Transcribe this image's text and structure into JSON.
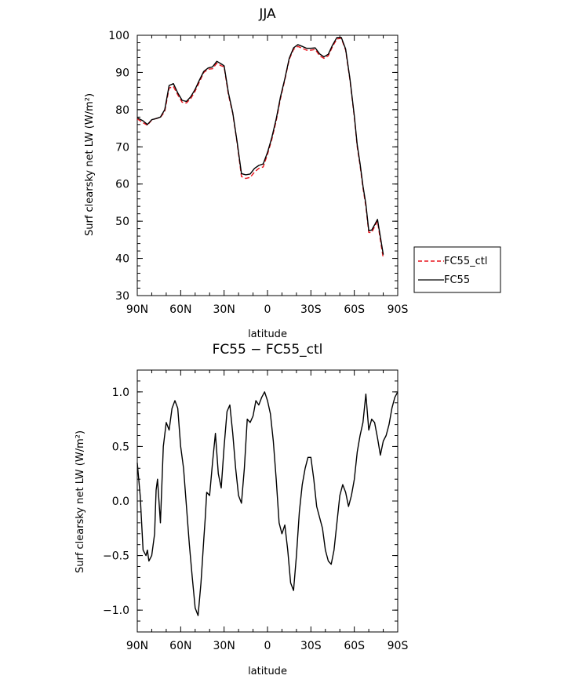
{
  "chart_data": [
    {
      "type": "line",
      "title": "JJA",
      "xlabel": "latitude",
      "ylabel": "Surf clearsky net LW (W/m²)",
      "xlim": [
        90,
        -90
      ],
      "ylim": [
        30,
        100
      ],
      "xticks": [
        90,
        60,
        30,
        0,
        -30,
        -60,
        -90
      ],
      "xtick_labels": [
        "90N",
        "60N",
        "30N",
        "0",
        "30S",
        "60S",
        "90S"
      ],
      "yticks": [
        30,
        40,
        50,
        60,
        70,
        80,
        90,
        100
      ],
      "ytick_labels": [
        "30",
        "40",
        "50",
        "60",
        "70",
        "80",
        "90",
        "100"
      ],
      "legend": {
        "placement": "outside-right"
      },
      "x": [
        90,
        86,
        83,
        80,
        77,
        74,
        71,
        68,
        65,
        62,
        59,
        56,
        53,
        50,
        47,
        44,
        41,
        38,
        35,
        32,
        30,
        27,
        24,
        21,
        18,
        15,
        12,
        9,
        6,
        3,
        0,
        -3,
        -6,
        -9,
        -12,
        -15,
        -18,
        -21,
        -24,
        -27,
        -30,
        -33,
        -36,
        -39,
        -42,
        -45,
        -48,
        -51,
        -54,
        -57,
        -60,
        -62,
        -64,
        -66,
        -68,
        -70,
        -72,
        -74,
        -76,
        -78,
        -80,
        -82,
        -84,
        -86,
        -88,
        -90
      ],
      "series": [
        {
          "name": "FC55_ctl",
          "color": "#e8141c",
          "dash": true,
          "values": [
            77.5,
            76.5,
            75.8,
            77.2,
            77.6,
            77.9,
            79.5,
            85.8,
            86.2,
            84.0,
            82.0,
            81.8,
            83.0,
            85.0,
            87.5,
            90.0,
            90.9,
            91.0,
            92.5,
            91.8,
            91.5,
            84.0,
            79.0,
            71.0,
            62.0,
            61.5,
            61.8,
            63.2,
            64.2,
            64.6,
            68.0,
            72.0,
            77.0,
            83.0,
            88.0,
            93.5,
            96.2,
            97.0,
            96.5,
            96.0,
            96.0,
            96.2,
            94.5,
            93.8,
            94.5,
            97.0,
            99.0,
            99.2,
            96.0,
            88.0,
            78.0,
            70.0,
            65.0,
            59.0,
            54.0,
            47.0,
            47.0,
            48.5,
            50.0,
            45.0,
            40.0,
            null,
            null,
            null,
            null,
            null
          ]
        },
        {
          "name": "FC55",
          "color": "#000000",
          "dash": false,
          "values": [
            77.8,
            77.0,
            76.0,
            77.3,
            77.6,
            78.0,
            80.0,
            86.5,
            87.0,
            84.5,
            82.5,
            82.2,
            83.5,
            85.5,
            88.0,
            90.3,
            91.2,
            91.5,
            93.0,
            92.3,
            91.8,
            84.5,
            79.2,
            71.3,
            62.8,
            62.5,
            62.7,
            64.2,
            65.0,
            65.4,
            68.5,
            72.5,
            77.5,
            83.5,
            88.3,
            93.8,
            96.6,
            97.5,
            97.0,
            96.5,
            96.5,
            96.6,
            95.0,
            94.2,
            94.9,
            97.4,
            99.4,
            99.4,
            96.3,
            88.3,
            78.3,
            70.5,
            65.5,
            59.5,
            54.6,
            47.5,
            47.6,
            49.0,
            50.5,
            45.8,
            41.0,
            null,
            null,
            null,
            null,
            null
          ]
        }
      ]
    },
    {
      "type": "line",
      "title": "FC55 − FC55_ctl",
      "xlabel": "latitude",
      "ylabel": "Surf clearsky net LW (W/m²)",
      "xlim": [
        90,
        -90
      ],
      "ylim": [
        -1.2,
        1.2
      ],
      "xticks": [
        90,
        60,
        30,
        0,
        -30,
        -60,
        -90
      ],
      "xtick_labels": [
        "90N",
        "60N",
        "30N",
        "0",
        "30S",
        "60S",
        "90S"
      ],
      "yticks": [
        -1.0,
        -0.5,
        0.0,
        0.5,
        1.0
      ],
      "ytick_labels": [
        "−1.0",
        "−0.5",
        "0.0",
        "0.5",
        "1.0"
      ],
      "x": [
        90,
        88,
        86,
        84,
        83,
        82,
        80,
        78,
        77,
        76,
        74,
        72,
        70,
        68,
        66,
        64,
        62,
        60,
        58,
        56,
        54,
        52,
        50,
        48,
        46,
        44,
        43,
        42,
        40,
        38,
        36,
        34,
        32,
        30,
        28,
        26,
        24,
        22,
        20,
        18,
        16,
        14,
        12,
        10,
        8,
        6,
        4,
        2,
        0,
        -2,
        -4,
        -6,
        -8,
        -10,
        -12,
        -14,
        -16,
        -18,
        -20,
        -22,
        -24,
        -26,
        -28,
        -30,
        -32,
        -34,
        -36,
        -38,
        -40,
        -42,
        -44,
        -46,
        -48,
        -50,
        -52,
        -54,
        -56,
        -58,
        -60,
        -62,
        -64,
        -66,
        -68,
        -70,
        -72,
        -74,
        -76,
        -78,
        -80,
        -82,
        -84,
        -86,
        -88,
        -90
      ],
      "series": [
        {
          "name": "",
          "color": "#000000",
          "values": [
            0.35,
            0.05,
            -0.45,
            -0.5,
            -0.45,
            -0.55,
            -0.5,
            -0.3,
            0.1,
            0.2,
            -0.2,
            0.5,
            0.72,
            0.65,
            0.85,
            0.92,
            0.85,
            0.5,
            0.3,
            -0.05,
            -0.4,
            -0.7,
            -0.98,
            -1.05,
            -0.75,
            -0.35,
            -0.15,
            0.08,
            0.05,
            0.35,
            0.62,
            0.25,
            0.12,
            0.5,
            0.82,
            0.88,
            0.62,
            0.3,
            0.05,
            -0.02,
            0.3,
            0.75,
            0.72,
            0.78,
            0.92,
            0.88,
            0.95,
            1.0,
            0.92,
            0.8,
            0.55,
            0.2,
            -0.2,
            -0.3,
            -0.22,
            -0.45,
            -0.75,
            -0.82,
            -0.5,
            -0.1,
            0.15,
            0.3,
            0.4,
            0.4,
            0.2,
            -0.05,
            -0.15,
            -0.25,
            -0.45,
            -0.55,
            -0.58,
            -0.45,
            -0.2,
            0.05,
            0.15,
            0.08,
            -0.05,
            0.05,
            0.2,
            0.45,
            0.6,
            0.72,
            0.98,
            0.65,
            0.75,
            0.72,
            0.58,
            0.42,
            0.55,
            0.6,
            0.7,
            0.85,
            0.95,
            1.0
          ]
        }
      ]
    }
  ]
}
